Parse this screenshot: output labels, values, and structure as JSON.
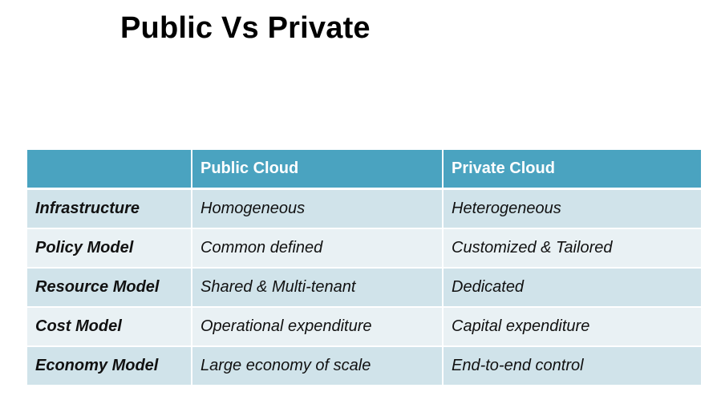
{
  "title": "Public Vs Private",
  "table": {
    "headers": [
      "",
      "Public Cloud",
      "Private Cloud"
    ],
    "rows": [
      [
        "Infrastructure",
        "Homogeneous",
        "Heterogeneous"
      ],
      [
        "Policy Model",
        "Common defined",
        "Customized & Tailored"
      ],
      [
        "Resource Model",
        "Shared & Multi-tenant",
        "Dedicated"
      ],
      [
        "Cost Model",
        "Operational expenditure",
        "Capital expenditure"
      ],
      [
        "Economy Model",
        "Large economy of scale",
        "End-to-end control"
      ]
    ]
  },
  "colors": {
    "header_bg": "#4aa3c0",
    "row_odd_bg": "#d0e3ea",
    "row_even_bg": "#e9f1f4"
  }
}
